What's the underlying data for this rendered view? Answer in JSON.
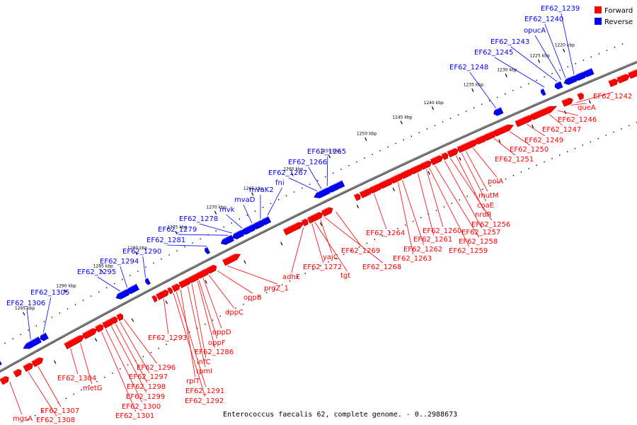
{
  "legend": [
    {
      "label": "Forward",
      "color": "#ff0000"
    },
    {
      "label": "Reverse",
      "color": "#0000ff"
    }
  ],
  "colors": {
    "forward": "#ff0000",
    "reverse": "#0000ff",
    "backbone": "#808080"
  },
  "caption": "Enterococcus faecalis 62, complete genome. - 0..2988673",
  "ticks": [
    "1220 kbp",
    "1225 kbp",
    "1230 kbp",
    "1235 kbp",
    "1240 kbp",
    "1245 kbp",
    "1250 kbp",
    "1255 kbp",
    "1260 kbp",
    "1265 kbp",
    "1270 kbp",
    "1275 kbp",
    "1280 kbp",
    "1285 kbp",
    "1290 kbp",
    "1295 kbp"
  ],
  "reverse_genes": [
    "EF62_1239",
    "EF62_1240",
    "opucA",
    "EF62_1243",
    "EF62_1245",
    "EF62_1248",
    "EF62_1265",
    "EF62_1266",
    "EF62_1267",
    "fni",
    "mvaK2",
    "mvaD",
    "mvk",
    "EF62_1278",
    "EF62_1279",
    "EF62_1281",
    "EF62_1290",
    "EF62_1294",
    "EF62_1295",
    "EF62_1305",
    "EF62_1306"
  ],
  "forward_genes": [
    "EF62_1242",
    "queA",
    "EF62_1246",
    "EF62_1247",
    "EF62_1249",
    "EF62_1250",
    "EF62_1251",
    "polA",
    "mutM",
    "coaE",
    "nrdR",
    "EF62_1256",
    "EF62_1257",
    "EF62_1258",
    "EF62_1259",
    "EF62_1260",
    "EF62_1261",
    "EF62_1262",
    "EF62_1263",
    "EF62_1264",
    "EF62_1269",
    "EF62_1268",
    "yajC",
    "tgt",
    "EF62_1272",
    "adhE",
    "prgZ_1",
    "oppB",
    "dppC",
    "oppD",
    "oppF",
    "EF62_1286",
    "infC",
    "rpmI",
    "rplT",
    "EF62_1291",
    "EF62_1292",
    "EF62_1293",
    "EF62_1296",
    "EF62_1297",
    "EF62_1298",
    "EF62_1299",
    "EF62_1300",
    "EF62_1301",
    "metG",
    "EF62_1304",
    "EF62_1307",
    "EF62_1308",
    "mgsA"
  ]
}
